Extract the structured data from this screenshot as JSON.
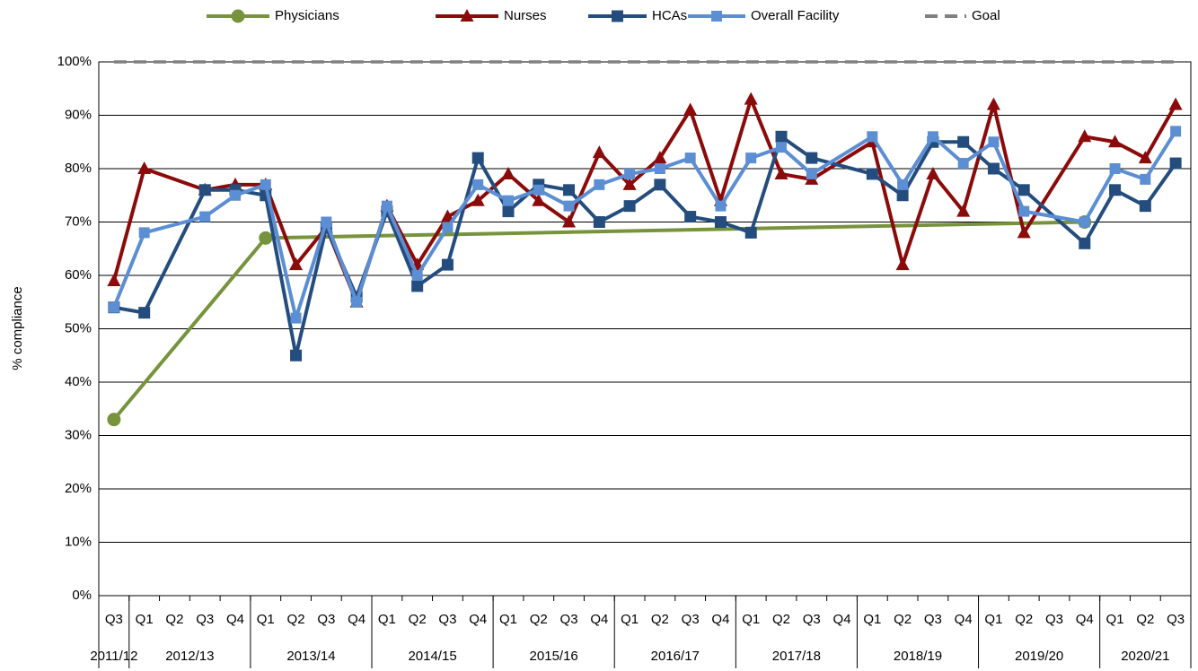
{
  "chart_data": {
    "type": "line",
    "ylabel": "% compliance",
    "ylim": [
      0,
      100
    ],
    "yticks": [
      {
        "value": 0,
        "label": "0%"
      },
      {
        "value": 10,
        "label": "10%"
      },
      {
        "value": 20,
        "label": "20%"
      },
      {
        "value": 30,
        "label": "30%"
      },
      {
        "value": 40,
        "label": "40%"
      },
      {
        "value": 50,
        "label": "50%"
      },
      {
        "value": 60,
        "label": "60%"
      },
      {
        "value": 70,
        "label": "70%"
      },
      {
        "value": 80,
        "label": "80%"
      },
      {
        "value": 90,
        "label": "90%"
      },
      {
        "value": 100,
        "label": "100%"
      }
    ],
    "grid": true,
    "span_gaps": true,
    "legend": "top",
    "category_groups": [
      {
        "name": "2011/12",
        "categories": [
          "Q3"
        ]
      },
      {
        "name": "2012/13",
        "categories": [
          "Q1",
          "Q2",
          "Q3",
          "Q4"
        ]
      },
      {
        "name": "2013/14",
        "categories": [
          "Q1",
          "Q2",
          "Q3",
          "Q4"
        ]
      },
      {
        "name": "2014/15",
        "categories": [
          "Q1",
          "Q2",
          "Q3",
          "Q4"
        ]
      },
      {
        "name": "2015/16",
        "categories": [
          "Q1",
          "Q2",
          "Q3",
          "Q4"
        ]
      },
      {
        "name": "2016/17",
        "categories": [
          "Q1",
          "Q2",
          "Q3",
          "Q4"
        ]
      },
      {
        "name": "2017/18",
        "categories": [
          "Q1",
          "Q2",
          "Q3",
          "Q4"
        ]
      },
      {
        "name": "2018/19",
        "categories": [
          "Q1",
          "Q2",
          "Q3",
          "Q4"
        ]
      },
      {
        "name": "2019/20",
        "categories": [
          "Q1",
          "Q2",
          "Q3",
          "Q4"
        ]
      },
      {
        "name": "2020/21",
        "categories": [
          "Q1",
          "Q2",
          "Q3"
        ]
      }
    ],
    "series": [
      {
        "name": "Physicians",
        "color": "#77933c",
        "marker": "circle",
        "values": [
          33,
          null,
          null,
          null,
          null,
          67,
          null,
          null,
          null,
          null,
          null,
          null,
          null,
          null,
          null,
          null,
          null,
          null,
          null,
          null,
          null,
          null,
          null,
          null,
          null,
          null,
          null,
          null,
          null,
          null,
          null,
          null,
          70,
          null,
          null,
          null
        ]
      },
      {
        "name": "Nurses",
        "color": "#8b0a0a",
        "marker": "triangle",
        "values": [
          59,
          80,
          null,
          76,
          77,
          77,
          62,
          69,
          55,
          73,
          62,
          71,
          74,
          79,
          74,
          70,
          83,
          77,
          82,
          91,
          74,
          93,
          79,
          78,
          null,
          85,
          62,
          79,
          72,
          92,
          68,
          null,
          86,
          85,
          82,
          92
        ]
      },
      {
        "name": "HCAs",
        "color": "#244d7e",
        "marker": "square",
        "values": [
          54,
          53,
          null,
          76,
          76,
          75,
          45,
          69,
          56,
          72,
          58,
          62,
          82,
          72,
          77,
          76,
          70,
          73,
          77,
          71,
          70,
          68,
          86,
          82,
          null,
          79,
          75,
          85,
          85,
          80,
          76,
          null,
          66,
          76,
          73,
          81
        ]
      },
      {
        "name": "Overall Facility",
        "color": "#5b8ed2",
        "marker": "square",
        "values": [
          54,
          68,
          null,
          71,
          75,
          77,
          52,
          70,
          55,
          73,
          60,
          69,
          77,
          74,
          76,
          73,
          77,
          79,
          80,
          82,
          73,
          82,
          84,
          79,
          null,
          86,
          77,
          86,
          81,
          85,
          72,
          null,
          70,
          80,
          78,
          87
        ]
      },
      {
        "name": "Goal",
        "color": "#808080",
        "marker": "none",
        "dashed": true,
        "values": [
          100,
          100,
          100,
          100,
          100,
          100,
          100,
          100,
          100,
          100,
          100,
          100,
          100,
          100,
          100,
          100,
          100,
          100,
          100,
          100,
          100,
          100,
          100,
          100,
          100,
          100,
          100,
          100,
          100,
          100,
          100,
          100,
          100,
          100,
          100,
          100
        ]
      }
    ]
  }
}
